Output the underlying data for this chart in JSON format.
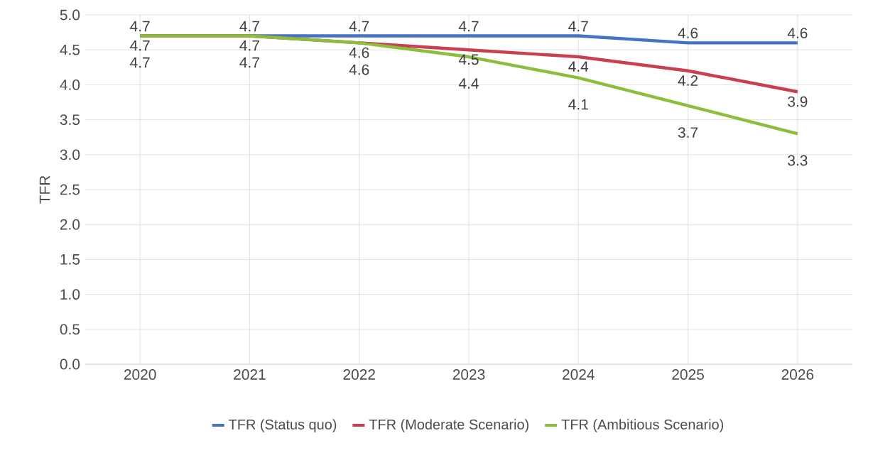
{
  "chart_data": {
    "type": "line",
    "ylabel": "TFR",
    "categories": [
      "2020",
      "2021",
      "2022",
      "2023",
      "2024",
      "2025",
      "2026"
    ],
    "series": [
      {
        "name": "TFR (Status quo)",
        "color": "#4472c4",
        "values": [
          4.7,
          4.7,
          4.7,
          4.7,
          4.7,
          4.6,
          4.6
        ]
      },
      {
        "name": "TFR (Moderate Scenario)",
        "color": "#c8404f",
        "values": [
          4.7,
          4.7,
          4.6,
          4.5,
          4.4,
          4.2,
          3.9
        ]
      },
      {
        "name": "TFR (Ambitious Scenario)",
        "color": "#8cbd3c",
        "values": [
          4.7,
          4.7,
          4.6,
          4.4,
          4.1,
          3.7,
          3.3
        ]
      }
    ],
    "ylim": [
      0,
      5
    ],
    "yticks": [
      {
        "value": 0,
        "label": "0.0"
      },
      {
        "value": 0.5,
        "label": "0.5"
      },
      {
        "value": 1,
        "label": "1.0"
      },
      {
        "value": 1.5,
        "label": "1.5"
      },
      {
        "value": 2,
        "label": "2.0"
      },
      {
        "value": 2.5,
        "label": "2.5"
      },
      {
        "value": 3,
        "label": "3.0"
      },
      {
        "value": 3.5,
        "label": "3.5"
      },
      {
        "value": 4,
        "label": "4.0"
      },
      {
        "value": 4.5,
        "label": "4.5"
      },
      {
        "value": 5,
        "label": "5.0"
      }
    ],
    "grid": true,
    "legend": "bottom",
    "data_labels": true,
    "marker": "none",
    "line_style": "solid"
  }
}
